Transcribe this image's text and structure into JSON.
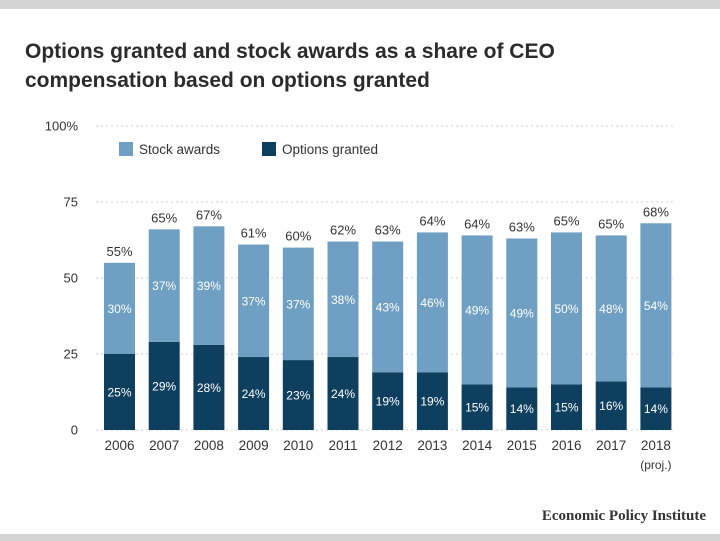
{
  "title_lines": [
    "Options granted and stock awards as a share of CEO",
    "compensation based on options granted"
  ],
  "source": "Economic Policy Institute",
  "colors": {
    "stock_awards": "#6f9fc2",
    "options_granted": "#0f3f5f",
    "grid": "#d9d9d9"
  },
  "chart_data": {
    "type": "bar",
    "stacked": true,
    "title": "Options granted and stock awards as a share of CEO compensation based on options granted",
    "xlabel": "",
    "ylabel": "",
    "ylim": [
      0,
      100
    ],
    "y_ticks": [
      {
        "value": 0,
        "label": "0"
      },
      {
        "value": 25,
        "label": "25"
      },
      {
        "value": 50,
        "label": "50"
      },
      {
        "value": 75,
        "label": "75"
      },
      {
        "value": 100,
        "label": "100%"
      }
    ],
    "categories": [
      "2006",
      "2007",
      "2008",
      "2009",
      "2010",
      "2011",
      "2012",
      "2013",
      "2014",
      "2015",
      "2016",
      "2017",
      "2018"
    ],
    "category_sublabels": [
      "",
      "",
      "",
      "",
      "",
      "",
      "",
      "",
      "",
      "",
      "",
      "",
      "(proj.)"
    ],
    "series": [
      {
        "name": "Options granted",
        "values": [
          25,
          29,
          28,
          24,
          23,
          24,
          19,
          19,
          15,
          14,
          15,
          16,
          14
        ]
      },
      {
        "name": "Stock awards",
        "values": [
          30,
          37,
          39,
          37,
          37,
          38,
          43,
          46,
          49,
          49,
          50,
          48,
          54
        ]
      }
    ],
    "totals": [
      55,
      65,
      67,
      61,
      60,
      62,
      63,
      64,
      64,
      63,
      65,
      65,
      68
    ],
    "value_suffix": "%",
    "legend_position": "top-left",
    "grid": true
  }
}
